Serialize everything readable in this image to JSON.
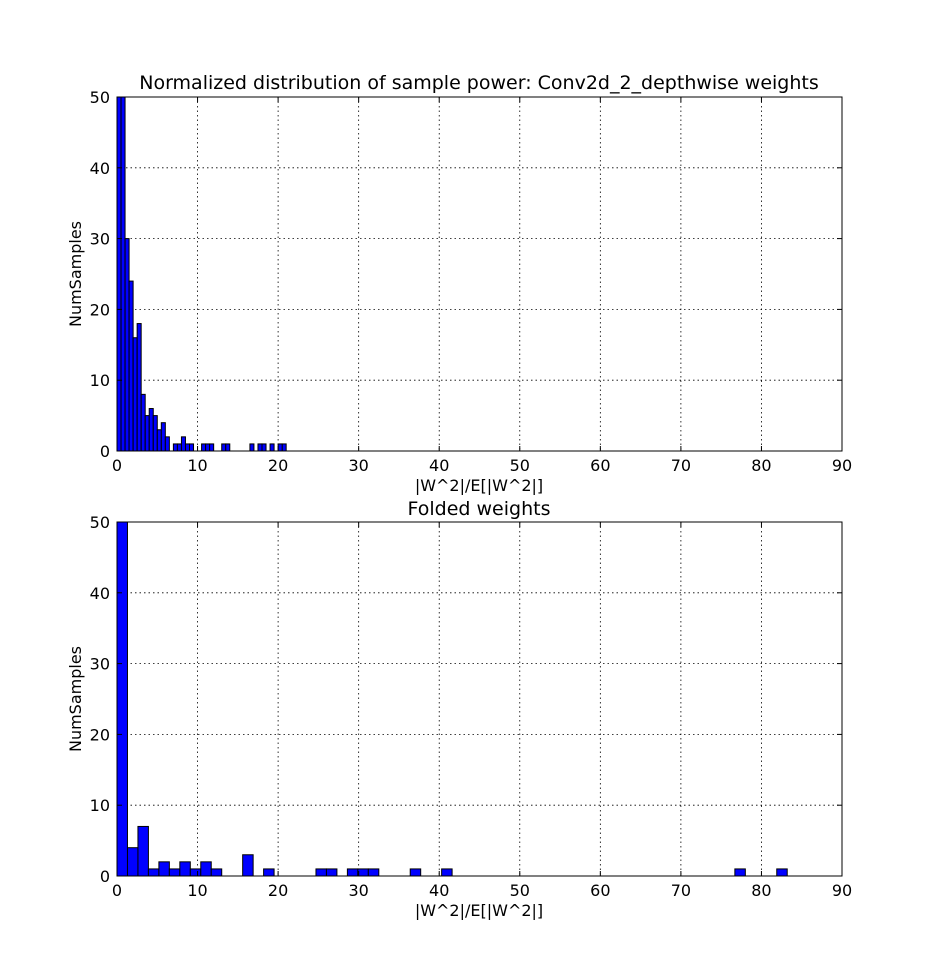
{
  "figure_bg": "#ffffff",
  "chart_data": [
    {
      "type": "bar",
      "title": "Normalized distribution of sample power: Conv2d_2_depthwise weights",
      "xlabel": "|W^2|/E[|W^2|]",
      "ylabel": "NumSamples",
      "xlim": [
        0,
        90
      ],
      "ylim": [
        0,
        50
      ],
      "xticks": [
        0,
        10,
        20,
        30,
        40,
        50,
        60,
        70,
        80,
        90
      ],
      "yticks": [
        0,
        10,
        20,
        30,
        40,
        50
      ],
      "grid": true,
      "bar_color": "#0000ff",
      "bin_width": 0.5,
      "bins": [
        {
          "x": 0.0,
          "value": 50
        },
        {
          "x": 0.5,
          "value": 50
        },
        {
          "x": 1.0,
          "value": 30
        },
        {
          "x": 1.5,
          "value": 24
        },
        {
          "x": 2.0,
          "value": 16
        },
        {
          "x": 2.5,
          "value": 18
        },
        {
          "x": 3.0,
          "value": 8
        },
        {
          "x": 3.5,
          "value": 5
        },
        {
          "x": 4.0,
          "value": 6
        },
        {
          "x": 4.5,
          "value": 5
        },
        {
          "x": 5.0,
          "value": 3
        },
        {
          "x": 5.5,
          "value": 4
        },
        {
          "x": 6.0,
          "value": 2
        },
        {
          "x": 7.0,
          "value": 1
        },
        {
          "x": 7.5,
          "value": 1
        },
        {
          "x": 8.0,
          "value": 2
        },
        {
          "x": 8.5,
          "value": 1
        },
        {
          "x": 9.0,
          "value": 1
        },
        {
          "x": 10.5,
          "value": 1
        },
        {
          "x": 11.0,
          "value": 1
        },
        {
          "x": 11.5,
          "value": 1
        },
        {
          "x": 13.0,
          "value": 1
        },
        {
          "x": 13.5,
          "value": 1
        },
        {
          "x": 16.5,
          "value": 1
        },
        {
          "x": 17.5,
          "value": 1
        },
        {
          "x": 18.0,
          "value": 1
        },
        {
          "x": 19.0,
          "value": 1
        },
        {
          "x": 20.5,
          "value": 1
        },
        {
          "x": 20.0,
          "value": 1
        }
      ]
    },
    {
      "type": "bar",
      "title": "Folded weights",
      "xlabel": "|W^2|/E[|W^2|]",
      "ylabel": "NumSamples",
      "xlim": [
        0,
        90
      ],
      "ylim": [
        0,
        50
      ],
      "xticks": [
        0,
        10,
        20,
        30,
        40,
        50,
        60,
        70,
        80,
        90
      ],
      "yticks": [
        0,
        10,
        20,
        30,
        40,
        50
      ],
      "grid": true,
      "bar_color": "#0000ff",
      "bin_width": 1.3,
      "bins": [
        {
          "x": 0.0,
          "value": 50
        },
        {
          "x": 1.3,
          "value": 4
        },
        {
          "x": 2.6,
          "value": 7
        },
        {
          "x": 3.9,
          "value": 1
        },
        {
          "x": 5.2,
          "value": 2
        },
        {
          "x": 6.5,
          "value": 1
        },
        {
          "x": 7.8,
          "value": 2
        },
        {
          "x": 9.1,
          "value": 1
        },
        {
          "x": 10.4,
          "value": 2
        },
        {
          "x": 11.7,
          "value": 1
        },
        {
          "x": 15.6,
          "value": 3
        },
        {
          "x": 18.2,
          "value": 1
        },
        {
          "x": 24.7,
          "value": 1
        },
        {
          "x": 26.0,
          "value": 1
        },
        {
          "x": 28.6,
          "value": 1
        },
        {
          "x": 29.9,
          "value": 1
        },
        {
          "x": 31.2,
          "value": 1
        },
        {
          "x": 36.4,
          "value": 1
        },
        {
          "x": 40.3,
          "value": 1
        },
        {
          "x": 76.7,
          "value": 1
        },
        {
          "x": 81.9,
          "value": 1
        }
      ]
    }
  ]
}
